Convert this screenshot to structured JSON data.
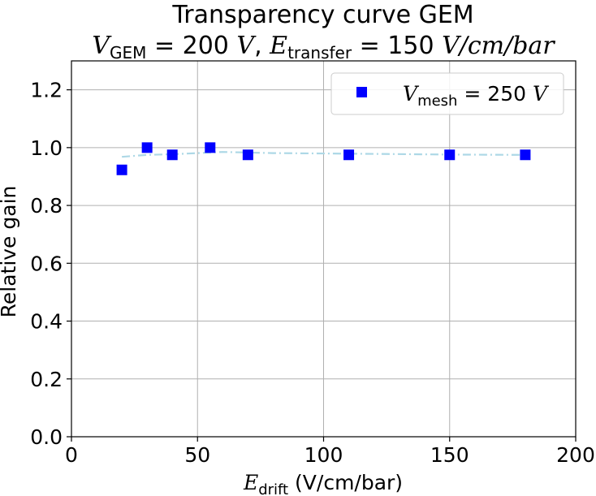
{
  "chart_data": {
    "type": "scatter",
    "title_line1": "Transparency curve GEM",
    "title_line2": {
      "v_symbol": "V",
      "v_sub": "GEM",
      "v_value": " = 200 ",
      "v_unit": "V",
      "sep": ", ",
      "e_symbol": "E",
      "e_sub": "transfer",
      "e_value": " = 150 ",
      "e_unit": "V/cm/bar"
    },
    "xlabel": {
      "symbol": "E",
      "sub": "drift",
      "rest": " (V/cm/bar)"
    },
    "ylabel": "Relative gain",
    "xlim": [
      0,
      200
    ],
    "ylim": [
      0,
      1.3
    ],
    "xticks": [
      0,
      50,
      100,
      150,
      200
    ],
    "xtick_labels": [
      "0",
      "50",
      "100",
      "150",
      "200"
    ],
    "yticks": [
      0.0,
      0.2,
      0.4,
      0.6,
      0.8,
      1.0,
      1.2
    ],
    "ytick_labels": [
      "0.0",
      "0.2",
      "0.4",
      "0.6",
      "0.8",
      "1.0",
      "1.2"
    ],
    "grid": true,
    "legend_position": "top-right",
    "series": [
      {
        "legend": {
          "symbol": "V",
          "sub": "mesh",
          "value": " = 250 ",
          "unit": "V"
        },
        "marker": "square",
        "color": "#0000ff",
        "x": [
          20,
          30,
          40,
          55,
          70,
          110,
          150,
          180
        ],
        "y": [
          0.923,
          1.0,
          0.975,
          1.0,
          0.975,
          0.975,
          0.975,
          0.975
        ]
      }
    ],
    "fit_curve": {
      "style": "dash-dot",
      "color": "#add8e6",
      "x": [
        20,
        30,
        40,
        50,
        60,
        80,
        110,
        150,
        180
      ],
      "y": [
        0.968,
        0.975,
        0.977,
        0.981,
        0.985,
        0.981,
        0.979,
        0.976,
        0.975
      ]
    }
  }
}
